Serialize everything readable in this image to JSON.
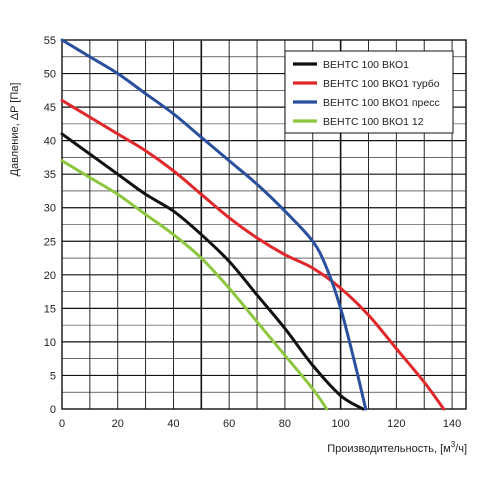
{
  "chart_data": {
    "type": "line",
    "xlabel": "Производительность, [м³/ч]",
    "ylabel": "Давление, ΔP [Па]",
    "xlim": [
      0,
      145
    ],
    "ylim": [
      0,
      55
    ],
    "xticks": [
      0,
      20,
      40,
      60,
      80,
      100,
      120,
      140
    ],
    "yticks": [
      0,
      5,
      10,
      15,
      20,
      25,
      30,
      35,
      40,
      45,
      50,
      55
    ],
    "grid": true,
    "legend_position": "top-right",
    "series": [
      {
        "name": "ВЕНТС 100 ВКО1",
        "color": "#111111",
        "points": [
          [
            0,
            41
          ],
          [
            10,
            38
          ],
          [
            20,
            35
          ],
          [
            30,
            32
          ],
          [
            40,
            29.5
          ],
          [
            50,
            26
          ],
          [
            60,
            22
          ],
          [
            70,
            17
          ],
          [
            80,
            12
          ],
          [
            90,
            6.5
          ],
          [
            100,
            2
          ],
          [
            108,
            0
          ]
        ]
      },
      {
        "name": "ВЕНТС 100 ВКО1 турбо",
        "color": "#e0282a",
        "points": [
          [
            0,
            46
          ],
          [
            10,
            43.5
          ],
          [
            20,
            41
          ],
          [
            30,
            38.5
          ],
          [
            40,
            35.5
          ],
          [
            50,
            32
          ],
          [
            60,
            28.5
          ],
          [
            70,
            25.5
          ],
          [
            80,
            23
          ],
          [
            90,
            21
          ],
          [
            100,
            18
          ],
          [
            110,
            14
          ],
          [
            120,
            9
          ],
          [
            130,
            4
          ],
          [
            137,
            0
          ]
        ]
      },
      {
        "name": "ВЕНТС 100 ВКО1 пресс",
        "color": "#2a4f9c",
        "points": [
          [
            0,
            55
          ],
          [
            10,
            52.5
          ],
          [
            20,
            50
          ],
          [
            30,
            47
          ],
          [
            40,
            44
          ],
          [
            50,
            40.5
          ],
          [
            60,
            37
          ],
          [
            70,
            33.5
          ],
          [
            80,
            29.5
          ],
          [
            90,
            25
          ],
          [
            95,
            21
          ],
          [
            100,
            15
          ],
          [
            105,
            7
          ],
          [
            109,
            0
          ]
        ]
      },
      {
        "name": "ВЕНТС 100 ВКО1 12",
        "color": "#8dc63f",
        "points": [
          [
            0,
            37
          ],
          [
            10,
            34.5
          ],
          [
            20,
            32
          ],
          [
            30,
            29
          ],
          [
            40,
            26
          ],
          [
            50,
            22.5
          ],
          [
            60,
            18
          ],
          [
            70,
            13
          ],
          [
            80,
            8
          ],
          [
            90,
            3
          ],
          [
            95,
            0
          ]
        ]
      }
    ]
  }
}
